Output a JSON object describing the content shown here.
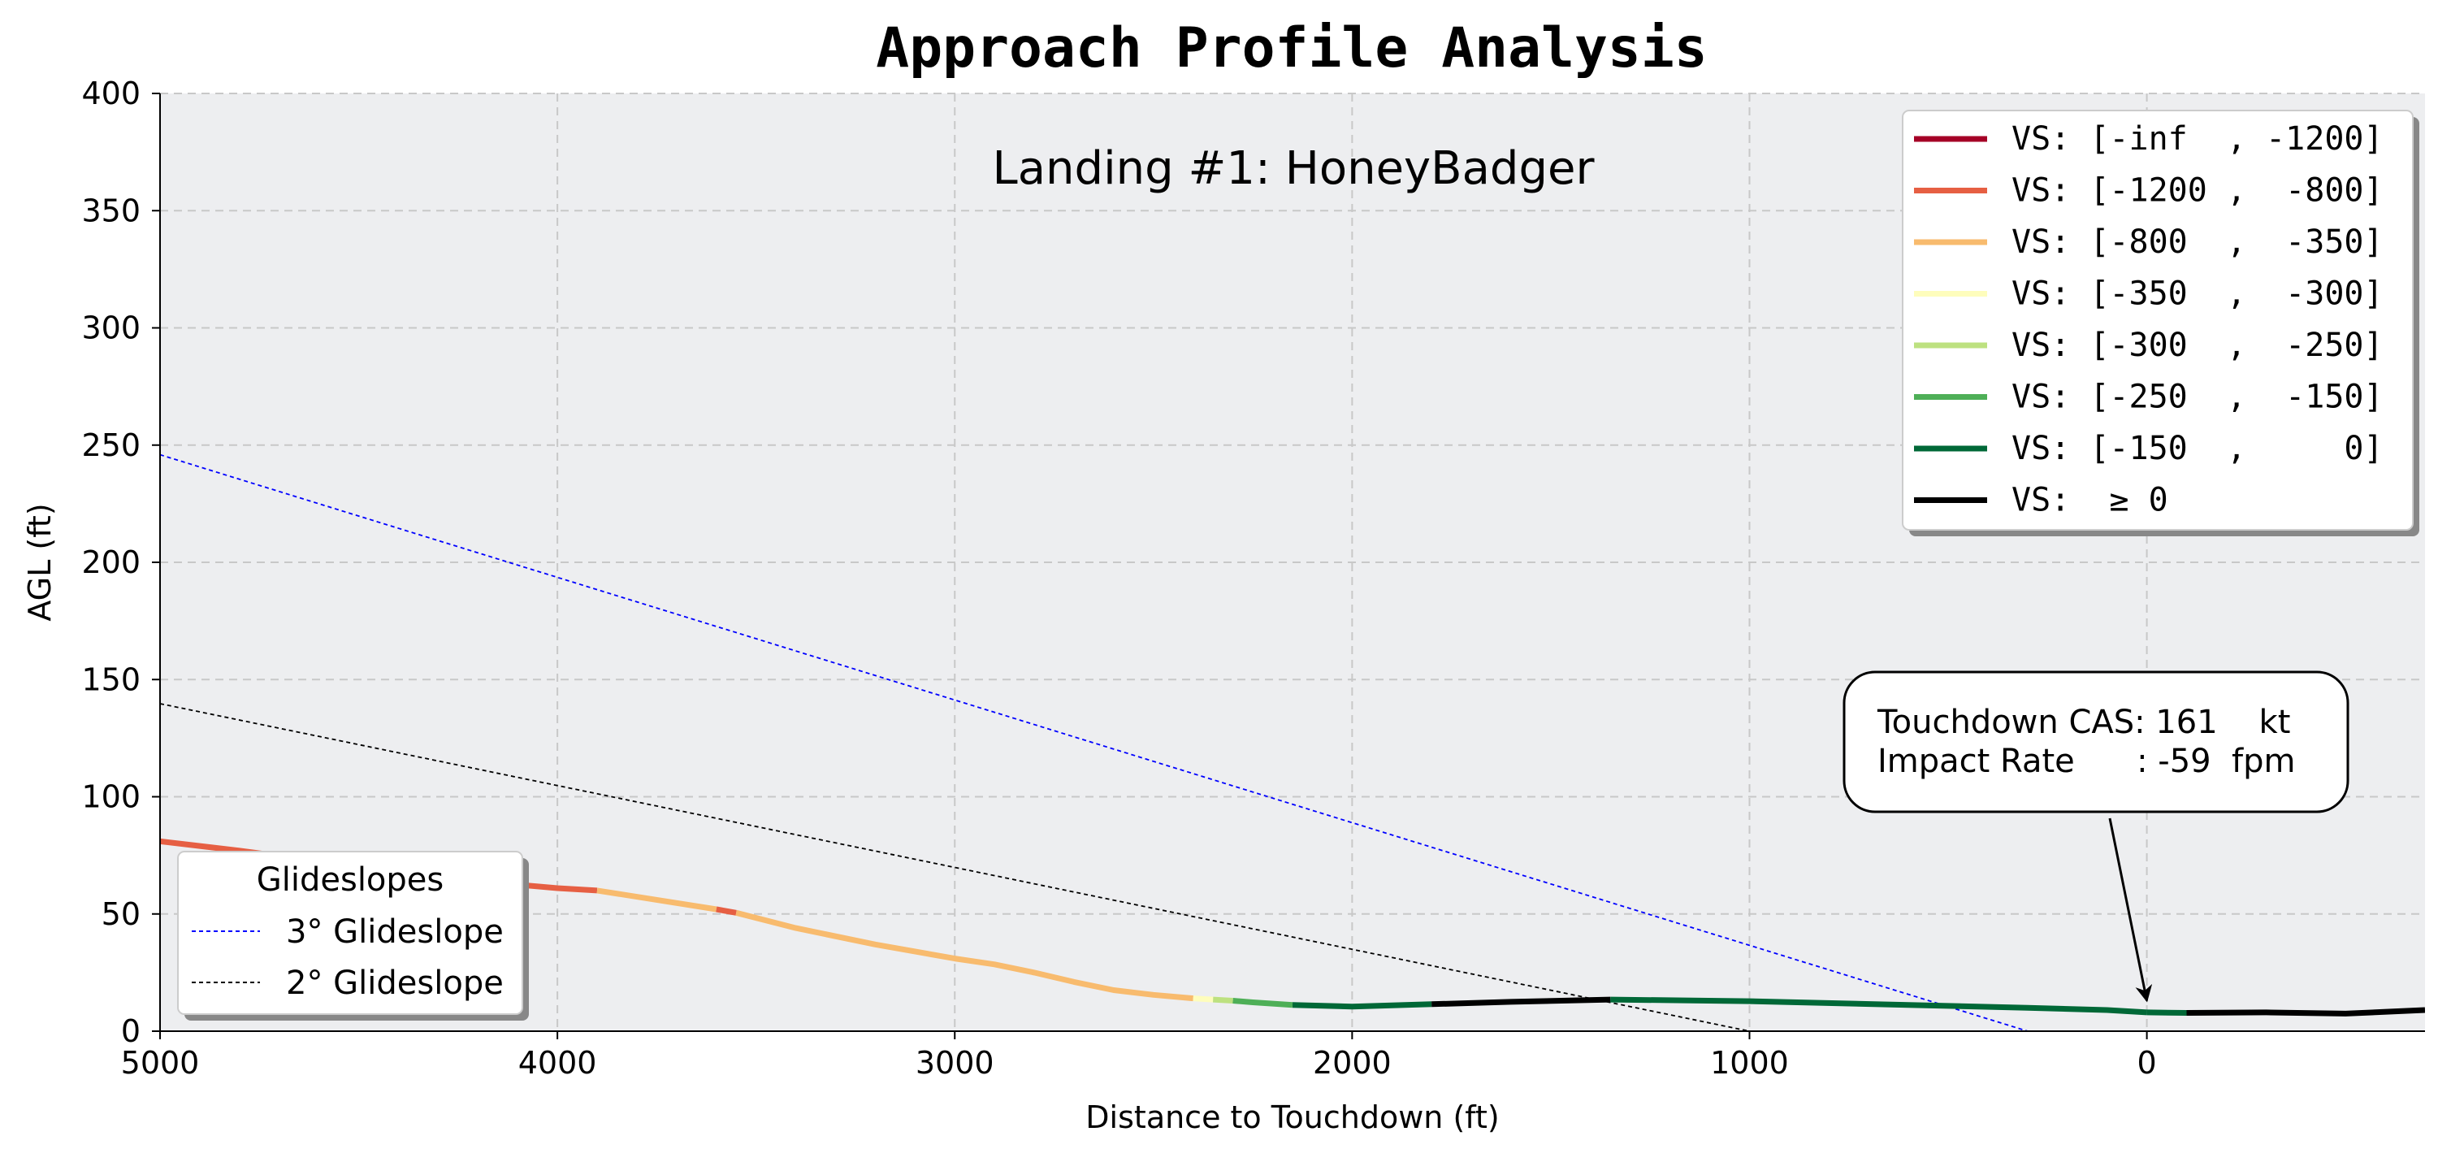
{
  "chart_data": {
    "type": "line",
    "title": "Approach Profile Analysis",
    "subtitle": "Landing #1: HoneyBadger",
    "xlabel": "Distance to Touchdown (ft)",
    "ylabel": "AGL (ft)",
    "xlim": [
      5000,
      -700
    ],
    "ylim": [
      0,
      400
    ],
    "xticks": [
      5000,
      4000,
      3000,
      2000,
      1000,
      0
    ],
    "xtick_labels": [
      "5000",
      "4000",
      "3000",
      "2000",
      "1000",
      "0"
    ],
    "yticks": [
      0,
      50,
      100,
      150,
      200,
      250,
      300,
      350,
      400
    ],
    "ytick_labels": [
      "0",
      "50",
      "100",
      "150",
      "200",
      "250",
      "300",
      "350",
      "400"
    ],
    "grid": true,
    "legend_vs": {
      "placement": "top-right",
      "entries": [
        {
          "label": "VS: [-inf  , -1200]",
          "color": "#a50026"
        },
        {
          "label": "VS: [-1200 ,  -800]",
          "color": "#e65f43"
        },
        {
          "label": "VS: [-800  ,  -350]",
          "color": "#f8bb6e"
        },
        {
          "label": "VS: [-350  ,  -300]",
          "color": "#fefdbc"
        },
        {
          "label": "VS: [-300  ,  -250]",
          "color": "#bde180"
        },
        {
          "label": "VS: [-250  ,  -150]",
          "color": "#4eaf57"
        },
        {
          "label": "VS: [-150  ,     0]",
          "color": "#006837"
        },
        {
          "label": "VS:  ≥ 0",
          "color": "#000000"
        }
      ]
    },
    "legend_glideslopes": {
      "placement": "bottom-left",
      "title": "Glideslopes",
      "entries": [
        {
          "label": "3° Glideslope",
          "color": "#0000ff"
        },
        {
          "label": "2° Glideslope",
          "color": "#000000"
        }
      ]
    },
    "glideslopes": [
      {
        "name": "3° Glideslope",
        "color": "#0000ff",
        "points": [
          [
            5000,
            245.9
          ],
          [
            300,
            0
          ]
        ]
      },
      {
        "name": "2° Glideslope",
        "color": "#000000",
        "points": [
          [
            5000,
            139.7
          ],
          [
            1000,
            0
          ]
        ]
      }
    ],
    "profile_segments": [
      {
        "band": "VS: [-1200 ,  -800]",
        "color": "#e65f43",
        "points": [
          [
            5000,
            81
          ],
          [
            4800,
            77
          ],
          [
            4600,
            72.5
          ],
          [
            4400,
            68
          ],
          [
            4200,
            64
          ],
          [
            4000,
            61
          ],
          [
            3900,
            60
          ]
        ]
      },
      {
        "band": "VS: [-800  ,  -350]",
        "color": "#f8bb6e",
        "points": [
          [
            3900,
            60
          ],
          [
            3750,
            56
          ],
          [
            3600,
            52
          ]
        ]
      },
      {
        "band": "VS: [-1200 ,  -800]",
        "color": "#e65f43",
        "points": [
          [
            3600,
            52
          ],
          [
            3550,
            50.5
          ]
        ]
      },
      {
        "band": "VS: [-800  ,  -350]",
        "color": "#f8bb6e",
        "points": [
          [
            3550,
            50.5
          ],
          [
            3400,
            44
          ],
          [
            3200,
            37
          ],
          [
            3000,
            31
          ],
          [
            2900,
            28.5
          ],
          [
            2800,
            25
          ],
          [
            2700,
            21
          ],
          [
            2600,
            17.5
          ],
          [
            2500,
            15.5
          ],
          [
            2400,
            14
          ]
        ]
      },
      {
        "band": "VS: [-350  ,  -300]",
        "color": "#fefdbc",
        "points": [
          [
            2400,
            14
          ],
          [
            2350,
            13.5
          ]
        ]
      },
      {
        "band": "VS: [-300  ,  -250]",
        "color": "#bde180",
        "points": [
          [
            2350,
            13.5
          ],
          [
            2300,
            13
          ]
        ]
      },
      {
        "band": "VS: [-250  ,  -150]",
        "color": "#4eaf57",
        "points": [
          [
            2300,
            13
          ],
          [
            2250,
            12.3
          ],
          [
            2150,
            11.2
          ]
        ]
      },
      {
        "band": "VS: [-150  ,     0]",
        "color": "#006837",
        "points": [
          [
            2150,
            11.2
          ],
          [
            2000,
            10.5
          ],
          [
            1800,
            11.5
          ]
        ]
      },
      {
        "band": "VS:  ≥ 0",
        "color": "#000000",
        "points": [
          [
            1800,
            11.5
          ],
          [
            1600,
            12.5
          ],
          [
            1350,
            13.5
          ]
        ]
      },
      {
        "band": "VS: [-150  ,     0]",
        "color": "#006837",
        "points": [
          [
            1350,
            13.5
          ],
          [
            1000,
            12.8
          ],
          [
            600,
            11.2
          ],
          [
            300,
            10
          ],
          [
            100,
            9
          ],
          [
            0,
            8
          ]
        ]
      },
      {
        "band": "VS: [-150  ,     0]",
        "color": "#006837",
        "points": [
          [
            0,
            8
          ],
          [
            -100,
            7.8
          ]
        ]
      },
      {
        "band": "VS:  ≥ 0",
        "color": "#000000",
        "points": [
          [
            -100,
            7.8
          ],
          [
            -300,
            8
          ],
          [
            -500,
            7.5
          ],
          [
            -700,
            9
          ]
        ]
      }
    ],
    "annotation": {
      "line1": "Touchdown CAS: 161    kt",
      "line2": "Impact Rate      : -59  fpm",
      "arrow_target": [
        0,
        13
      ]
    }
  }
}
